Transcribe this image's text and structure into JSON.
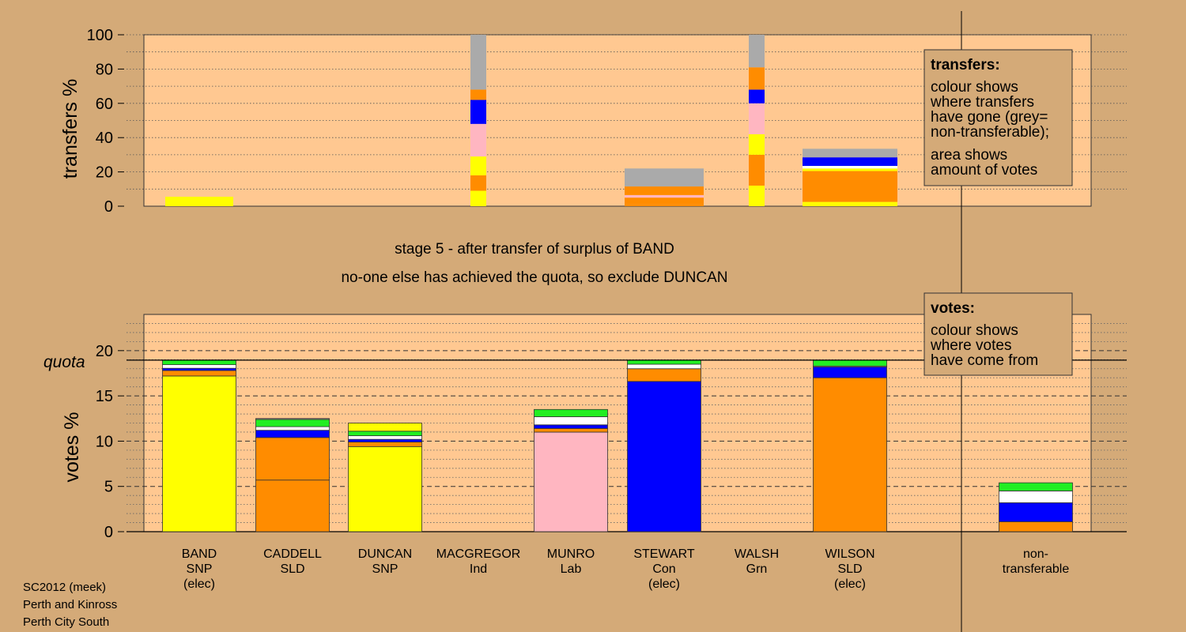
{
  "chart_data": [
    {
      "type": "bar",
      "stacked": true,
      "ylabel": "transfers %",
      "ylim": [
        0,
        100
      ],
      "yticks": [
        "0",
        "20",
        "40",
        "60",
        "80",
        "100"
      ],
      "grid": true,
      "columns": [
        {
          "candidate": "BAND",
          "segments": [
            {
              "color": "#ffff00",
              "value": 5.5
            }
          ]
        },
        {
          "candidate": "MACGREGOR",
          "segments": [
            {
              "color": "#ffff00",
              "value": 9
            },
            {
              "color": "#ff8c00",
              "value": 9
            },
            {
              "color": "#ffff00",
              "value": 11
            },
            {
              "color": "#ffb6c1",
              "value": 19
            },
            {
              "color": "#0000ff",
              "value": 14
            },
            {
              "color": "#ff8c00",
              "value": 6
            },
            {
              "color": "#aaaaaa",
              "value": 32
            }
          ]
        },
        {
          "candidate": "STEWART",
          "segments": [
            {
              "color": "#ff8c00",
              "value": 1
            },
            {
              "color": "#ff8c00",
              "value": 4
            },
            {
              "color": "#ffb6c1",
              "value": 1.5
            },
            {
              "color": "#ff8c00",
              "value": 5
            },
            {
              "color": "#aaaaaa",
              "value": 10.5
            }
          ]
        },
        {
          "candidate": "WALSH",
          "segments": [
            {
              "color": "#ffff00",
              "value": 12
            },
            {
              "color": "#ff8c00",
              "value": 18
            },
            {
              "color": "#ffff00",
              "value": 12
            },
            {
              "color": "#ffb6c1",
              "value": 18
            },
            {
              "color": "#0000ff",
              "value": 8
            },
            {
              "color": "#ff8c00",
              "value": 13
            },
            {
              "color": "#aaaaaa",
              "value": 19
            }
          ]
        },
        {
          "candidate": "WILSON",
          "segments": [
            {
              "color": "#ffff00",
              "value": 2.5
            },
            {
              "color": "#ff8c00",
              "value": 18
            },
            {
              "color": "#ffff00",
              "value": 1.5
            },
            {
              "color": "#ffffff",
              "value": 1.5
            },
            {
              "color": "#0000ff",
              "value": 5
            },
            {
              "color": "#aaaaaa",
              "value": 5
            }
          ]
        }
      ]
    },
    {
      "type": "bar",
      "stacked": true,
      "ylabel": "votes %",
      "ylim": [
        0,
        24
      ],
      "yticks": [
        "0",
        "5",
        "10",
        "15",
        "20"
      ],
      "quota": 18.95,
      "quota_label": "quota",
      "grid": true,
      "columns": [
        {
          "candidate": "BAND",
          "segments": [
            {
              "color": "#ffff00",
              "value": 17.2
            },
            {
              "color": "#ff8c00",
              "value": 0.6
            },
            {
              "color": "#0000ff",
              "value": 0.25
            },
            {
              "color": "#ffffff",
              "value": 0.4
            },
            {
              "color": "#22ee22",
              "value": 0.5
            }
          ]
        },
        {
          "candidate": "CADDELL",
          "segments": [
            {
              "color": "#ff8c00",
              "value": 5.7
            },
            {
              "color": "#ff8c00",
              "value": 4.7
            },
            {
              "color": "#0000ff",
              "value": 0.8
            },
            {
              "color": "#ffffff",
              "value": 0.4
            },
            {
              "color": "#22ee22",
              "value": 0.8
            },
            {
              "color": "#aaaaaa",
              "value": 0.1
            }
          ]
        },
        {
          "candidate": "DUNCAN",
          "segments": [
            {
              "color": "#ffff00",
              "value": 9.4
            },
            {
              "color": "#ff8c00",
              "value": 0.5
            },
            {
              "color": "#0000ff",
              "value": 0.3
            },
            {
              "color": "#ffffff",
              "value": 0.4
            },
            {
              "color": "#22ee22",
              "value": 0.5
            },
            {
              "color": "#ffff00",
              "value": 0.9
            }
          ]
        },
        {
          "candidate": "MUNRO",
          "segments": [
            {
              "color": "#ffb6c1",
              "value": 11.0
            },
            {
              "color": "#ff8c00",
              "value": 0.4
            },
            {
              "color": "#0000ff",
              "value": 0.4
            },
            {
              "color": "#ffffff",
              "value": 0.9
            },
            {
              "color": "#22ee22",
              "value": 0.8
            }
          ]
        },
        {
          "candidate": "STEWART",
          "segments": [
            {
              "color": "#0000ff",
              "value": 16.6
            },
            {
              "color": "#ff8c00",
              "value": 1.4
            },
            {
              "color": "#ffffff",
              "value": 0.5
            },
            {
              "color": "#22ee22",
              "value": 0.45
            }
          ]
        },
        {
          "candidate": "WILSON",
          "segments": [
            {
              "color": "#ff8c00",
              "value": 17.0
            },
            {
              "color": "#0000ff",
              "value": 1.2
            },
            {
              "color": "#ffffff",
              "value": 0.1
            },
            {
              "color": "#22ee22",
              "value": 0.65
            }
          ]
        },
        {
          "candidate": "non-transferable",
          "segments": [
            {
              "color": "#ff8c00",
              "value": 1.1
            },
            {
              "color": "#0000ff",
              "value": 2.1
            },
            {
              "color": "#ffffff",
              "value": 1.3
            },
            {
              "color": "#22ee22",
              "value": 0.9
            }
          ]
        }
      ]
    }
  ],
  "candidates": [
    {
      "lines": [
        "BAND",
        "SNP",
        "(elec)"
      ]
    },
    {
      "lines": [
        "CADDELL",
        "SLD"
      ]
    },
    {
      "lines": [
        "DUNCAN",
        "SNP"
      ]
    },
    {
      "lines": [
        "MACGREGOR",
        "Ind"
      ]
    },
    {
      "lines": [
        "MUNRO",
        "Lab"
      ]
    },
    {
      "lines": [
        "STEWART",
        "Con",
        "(elec)"
      ]
    },
    {
      "lines": [
        "WALSH",
        "Grn"
      ]
    },
    {
      "lines": [
        "WILSON",
        "SLD",
        "(elec)"
      ]
    },
    {
      "lines": [
        "non-",
        "transferable"
      ]
    }
  ],
  "captions": {
    "line1": "stage 5 - after transfer of surplus of BAND",
    "line2": "no-one else has achieved the quota, so exclude DUNCAN"
  },
  "legend_transfers": {
    "title": "transfers:",
    "lines": [
      "colour shows",
      "where transfers",
      "have gone (grey=",
      "non-transferable);",
      "area shows",
      "amount of votes"
    ]
  },
  "legend_votes": {
    "title": "votes:",
    "lines": [
      "colour shows",
      "where votes",
      "have come from"
    ]
  },
  "footer": [
    "SC2012 (meek)",
    "Perth and Kinross",
    "Perth City South"
  ],
  "colors": {
    "background": "#d4aa78",
    "panel": "#ffc891",
    "snp": "#ffff00",
    "sld": "#ff8c00",
    "lab": "#ffb6c1",
    "con": "#0000ff",
    "grn": "#22ee22",
    "ind": "#ffffff",
    "nontransferable": "#aaaaaa"
  }
}
